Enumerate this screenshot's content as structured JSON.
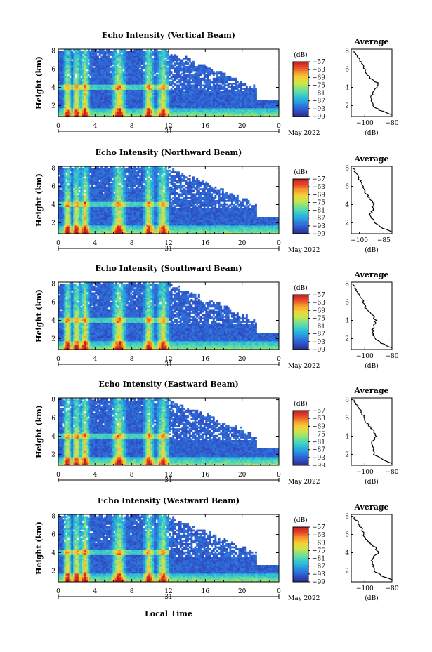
{
  "figure": {
    "bottom_xlabel": "Local Time",
    "date_label": "May 2022",
    "day_label": "31",
    "ylabel": "Height (km)",
    "cb_unit": "(dB)",
    "avg_title": "Average",
    "avg_xlabel": "(dB)"
  },
  "colors": {
    "colormap": [
      "#2a2f86",
      "#2f4fc8",
      "#2e7bdc",
      "#26aee0",
      "#3fd1c2",
      "#7fe08a",
      "#c8e64a",
      "#f6d238",
      "#f69a2c",
      "#e8452a",
      "#c21f1f"
    ],
    "cell_low": "#2f3a9a",
    "profile_line": "#000000"
  },
  "chart_data": [
    {
      "type": "heatmap",
      "title": "Echo Intensity (Vertical Beam)",
      "xticks": [
        "0",
        "4",
        "8",
        "12",
        "16",
        "20",
        "0"
      ],
      "xrange_hours": [
        0,
        24
      ],
      "yticks": [
        "2",
        "4",
        "6",
        "8"
      ],
      "yrange_km": [
        0.8,
        8.2
      ],
      "colorbar_ticks": [
        "-57",
        "-63",
        "-69",
        "-75",
        "-81",
        "-87",
        "-93",
        "-99"
      ],
      "colorbar_range_db": [
        -99,
        -57
      ],
      "bright_layer_km": 4.0,
      "strong_echo_columns_hours": [
        [
          0.8,
          1.2
        ],
        [
          1.8,
          2.2
        ],
        [
          2.6,
          3.2
        ],
        [
          6.0,
          7.2
        ],
        [
          9.5,
          10.2
        ],
        [
          11.0,
          11.8
        ]
      ],
      "average_profile": {
        "title": "Average",
        "xticks": [
          "-100",
          "-80"
        ],
        "xrange": [
          -110,
          -80
        ],
        "yticks": [
          "2",
          "4",
          "6",
          "8"
        ],
        "heights_km": [
          1.0,
          1.5,
          2.0,
          2.5,
          3.0,
          3.5,
          4.0,
          4.5,
          5.0,
          5.5,
          6.0,
          6.5,
          7.0,
          7.5,
          8.0
        ],
        "values_db": [
          -80,
          -89,
          -94,
          -95,
          -95,
          -94,
          -91,
          -91,
          -96,
          -99,
          -100,
          -101,
          -104,
          -106,
          -108
        ]
      }
    },
    {
      "type": "heatmap",
      "title": "Echo Intensity (Northward Beam)",
      "xticks": [
        "0",
        "4",
        "8",
        "12",
        "16",
        "20",
        "0"
      ],
      "xrange_hours": [
        0,
        24
      ],
      "yticks": [
        "2",
        "4",
        "6",
        "8"
      ],
      "yrange_km": [
        0.8,
        8.2
      ],
      "colorbar_ticks": [
        "-57",
        "-63",
        "-69",
        "-75",
        "-81",
        "-87",
        "-93",
        "-99"
      ],
      "colorbar_range_db": [
        -99,
        -57
      ],
      "bright_layer_km": 4.0,
      "strong_echo_columns_hours": [
        [
          0.8,
          1.2
        ],
        [
          1.8,
          2.2
        ],
        [
          2.6,
          3.2
        ],
        [
          6.0,
          7.2
        ],
        [
          9.5,
          10.2
        ],
        [
          11.0,
          11.8
        ]
      ],
      "average_profile": {
        "title": "Average",
        "xticks": [
          "-100",
          "-85"
        ],
        "xrange": [
          -105,
          -80
        ],
        "yticks": [
          "2",
          "4",
          "6",
          "8"
        ],
        "heights_km": [
          1.0,
          1.5,
          2.0,
          2.5,
          3.0,
          3.5,
          4.0,
          4.5,
          5.0,
          5.5,
          6.0,
          6.5,
          7.0,
          7.5,
          8.0
        ],
        "values_db": [
          -80,
          -87,
          -91,
          -92,
          -93,
          -92,
          -91,
          -93,
          -95,
          -97,
          -98,
          -99,
          -101,
          -102,
          -104
        ]
      }
    },
    {
      "type": "heatmap",
      "title": "Echo Intensity (Southward Beam)",
      "xticks": [
        "0",
        "4",
        "8",
        "12",
        "16",
        "20",
        "0"
      ],
      "xrange_hours": [
        0,
        24
      ],
      "yticks": [
        "2",
        "4",
        "6",
        "8"
      ],
      "yrange_km": [
        0.8,
        8.2
      ],
      "colorbar_ticks": [
        "-57",
        "-63",
        "-69",
        "-75",
        "-81",
        "-87",
        "-93",
        "-99"
      ],
      "colorbar_range_db": [
        -99,
        -57
      ],
      "bright_layer_km": 4.0,
      "strong_echo_columns_hours": [
        [
          0.8,
          1.2
        ],
        [
          1.8,
          2.2
        ],
        [
          2.6,
          3.2
        ],
        [
          6.0,
          7.2
        ],
        [
          9.5,
          10.2
        ],
        [
          11.0,
          11.8
        ]
      ],
      "average_profile": {
        "title": "Average",
        "xticks": [
          "-100",
          "-80"
        ],
        "xrange": [
          -110,
          -80
        ],
        "yticks": [
          "2",
          "4",
          "6",
          "8"
        ],
        "heights_km": [
          1.0,
          1.5,
          2.0,
          2.5,
          3.0,
          3.5,
          4.0,
          4.5,
          5.0,
          5.5,
          6.0,
          6.5,
          7.0,
          7.5,
          8.0
        ],
        "values_db": [
          -80,
          -88,
          -93,
          -94,
          -94,
          -93,
          -92,
          -94,
          -97,
          -100,
          -101,
          -103,
          -105,
          -107,
          -109
        ]
      }
    },
    {
      "type": "heatmap",
      "title": "Echo Intensity (Eastward Beam)",
      "xticks": [
        "0",
        "4",
        "8",
        "12",
        "16",
        "20",
        "0"
      ],
      "xrange_hours": [
        0,
        24
      ],
      "yticks": [
        "2",
        "4",
        "6",
        "8"
      ],
      "yrange_km": [
        0.8,
        8.2
      ],
      "colorbar_ticks": [
        "-57",
        "-63",
        "-69",
        "-75",
        "-81",
        "-87",
        "-93",
        "-99"
      ],
      "colorbar_range_db": [
        -99,
        -57
      ],
      "bright_layer_km": 4.0,
      "strong_echo_columns_hours": [
        [
          0.8,
          1.2
        ],
        [
          1.8,
          2.2
        ],
        [
          2.6,
          3.2
        ],
        [
          6.0,
          7.2
        ],
        [
          9.5,
          10.2
        ],
        [
          11.0,
          11.8
        ]
      ],
      "average_profile": {
        "title": "Average",
        "xticks": [
          "-100",
          "-80"
        ],
        "xrange": [
          -110,
          -80
        ],
        "yticks": [
          "2",
          "4",
          "6",
          "8"
        ],
        "heights_km": [
          1.0,
          1.5,
          2.0,
          2.5,
          3.0,
          3.5,
          4.0,
          4.5,
          5.0,
          5.5,
          6.0,
          6.5,
          7.0,
          7.5,
          8.0
        ],
        "values_db": [
          -80,
          -88,
          -93,
          -94,
          -95,
          -94,
          -92,
          -93,
          -96,
          -99,
          -100,
          -102,
          -104,
          -106,
          -108
        ]
      }
    },
    {
      "type": "heatmap",
      "title": "Echo Intensity (Westward Beam)",
      "xticks": [
        "0",
        "4",
        "8",
        "12",
        "16",
        "20",
        "0"
      ],
      "xrange_hours": [
        0,
        24
      ],
      "yticks": [
        "2",
        "4",
        "6",
        "8"
      ],
      "yrange_km": [
        0.8,
        8.2
      ],
      "colorbar_ticks": [
        "-57",
        "-63",
        "-69",
        "-75",
        "-81",
        "-87",
        "-93",
        "-99"
      ],
      "colorbar_range_db": [
        -99,
        -57
      ],
      "bright_layer_km": 4.0,
      "strong_echo_columns_hours": [
        [
          0.8,
          1.2
        ],
        [
          1.8,
          2.2
        ],
        [
          2.6,
          3.2
        ],
        [
          6.0,
          7.2
        ],
        [
          9.5,
          10.2
        ],
        [
          11.0,
          11.8
        ]
      ],
      "average_profile": {
        "title": "Average",
        "xticks": [
          "-100",
          "-80"
        ],
        "xrange": [
          -110,
          -80
        ],
        "yticks": [
          "2",
          "4",
          "6",
          "8"
        ],
        "heights_km": [
          1.0,
          1.5,
          2.0,
          2.5,
          3.0,
          3.5,
          4.0,
          4.5,
          5.0,
          5.5,
          6.0,
          6.5,
          7.0,
          7.5,
          8.0
        ],
        "values_db": [
          -80,
          -88,
          -93,
          -94,
          -95,
          -94,
          -90,
          -92,
          -96,
          -99,
          -101,
          -102,
          -104,
          -106,
          -109
        ]
      }
    }
  ]
}
